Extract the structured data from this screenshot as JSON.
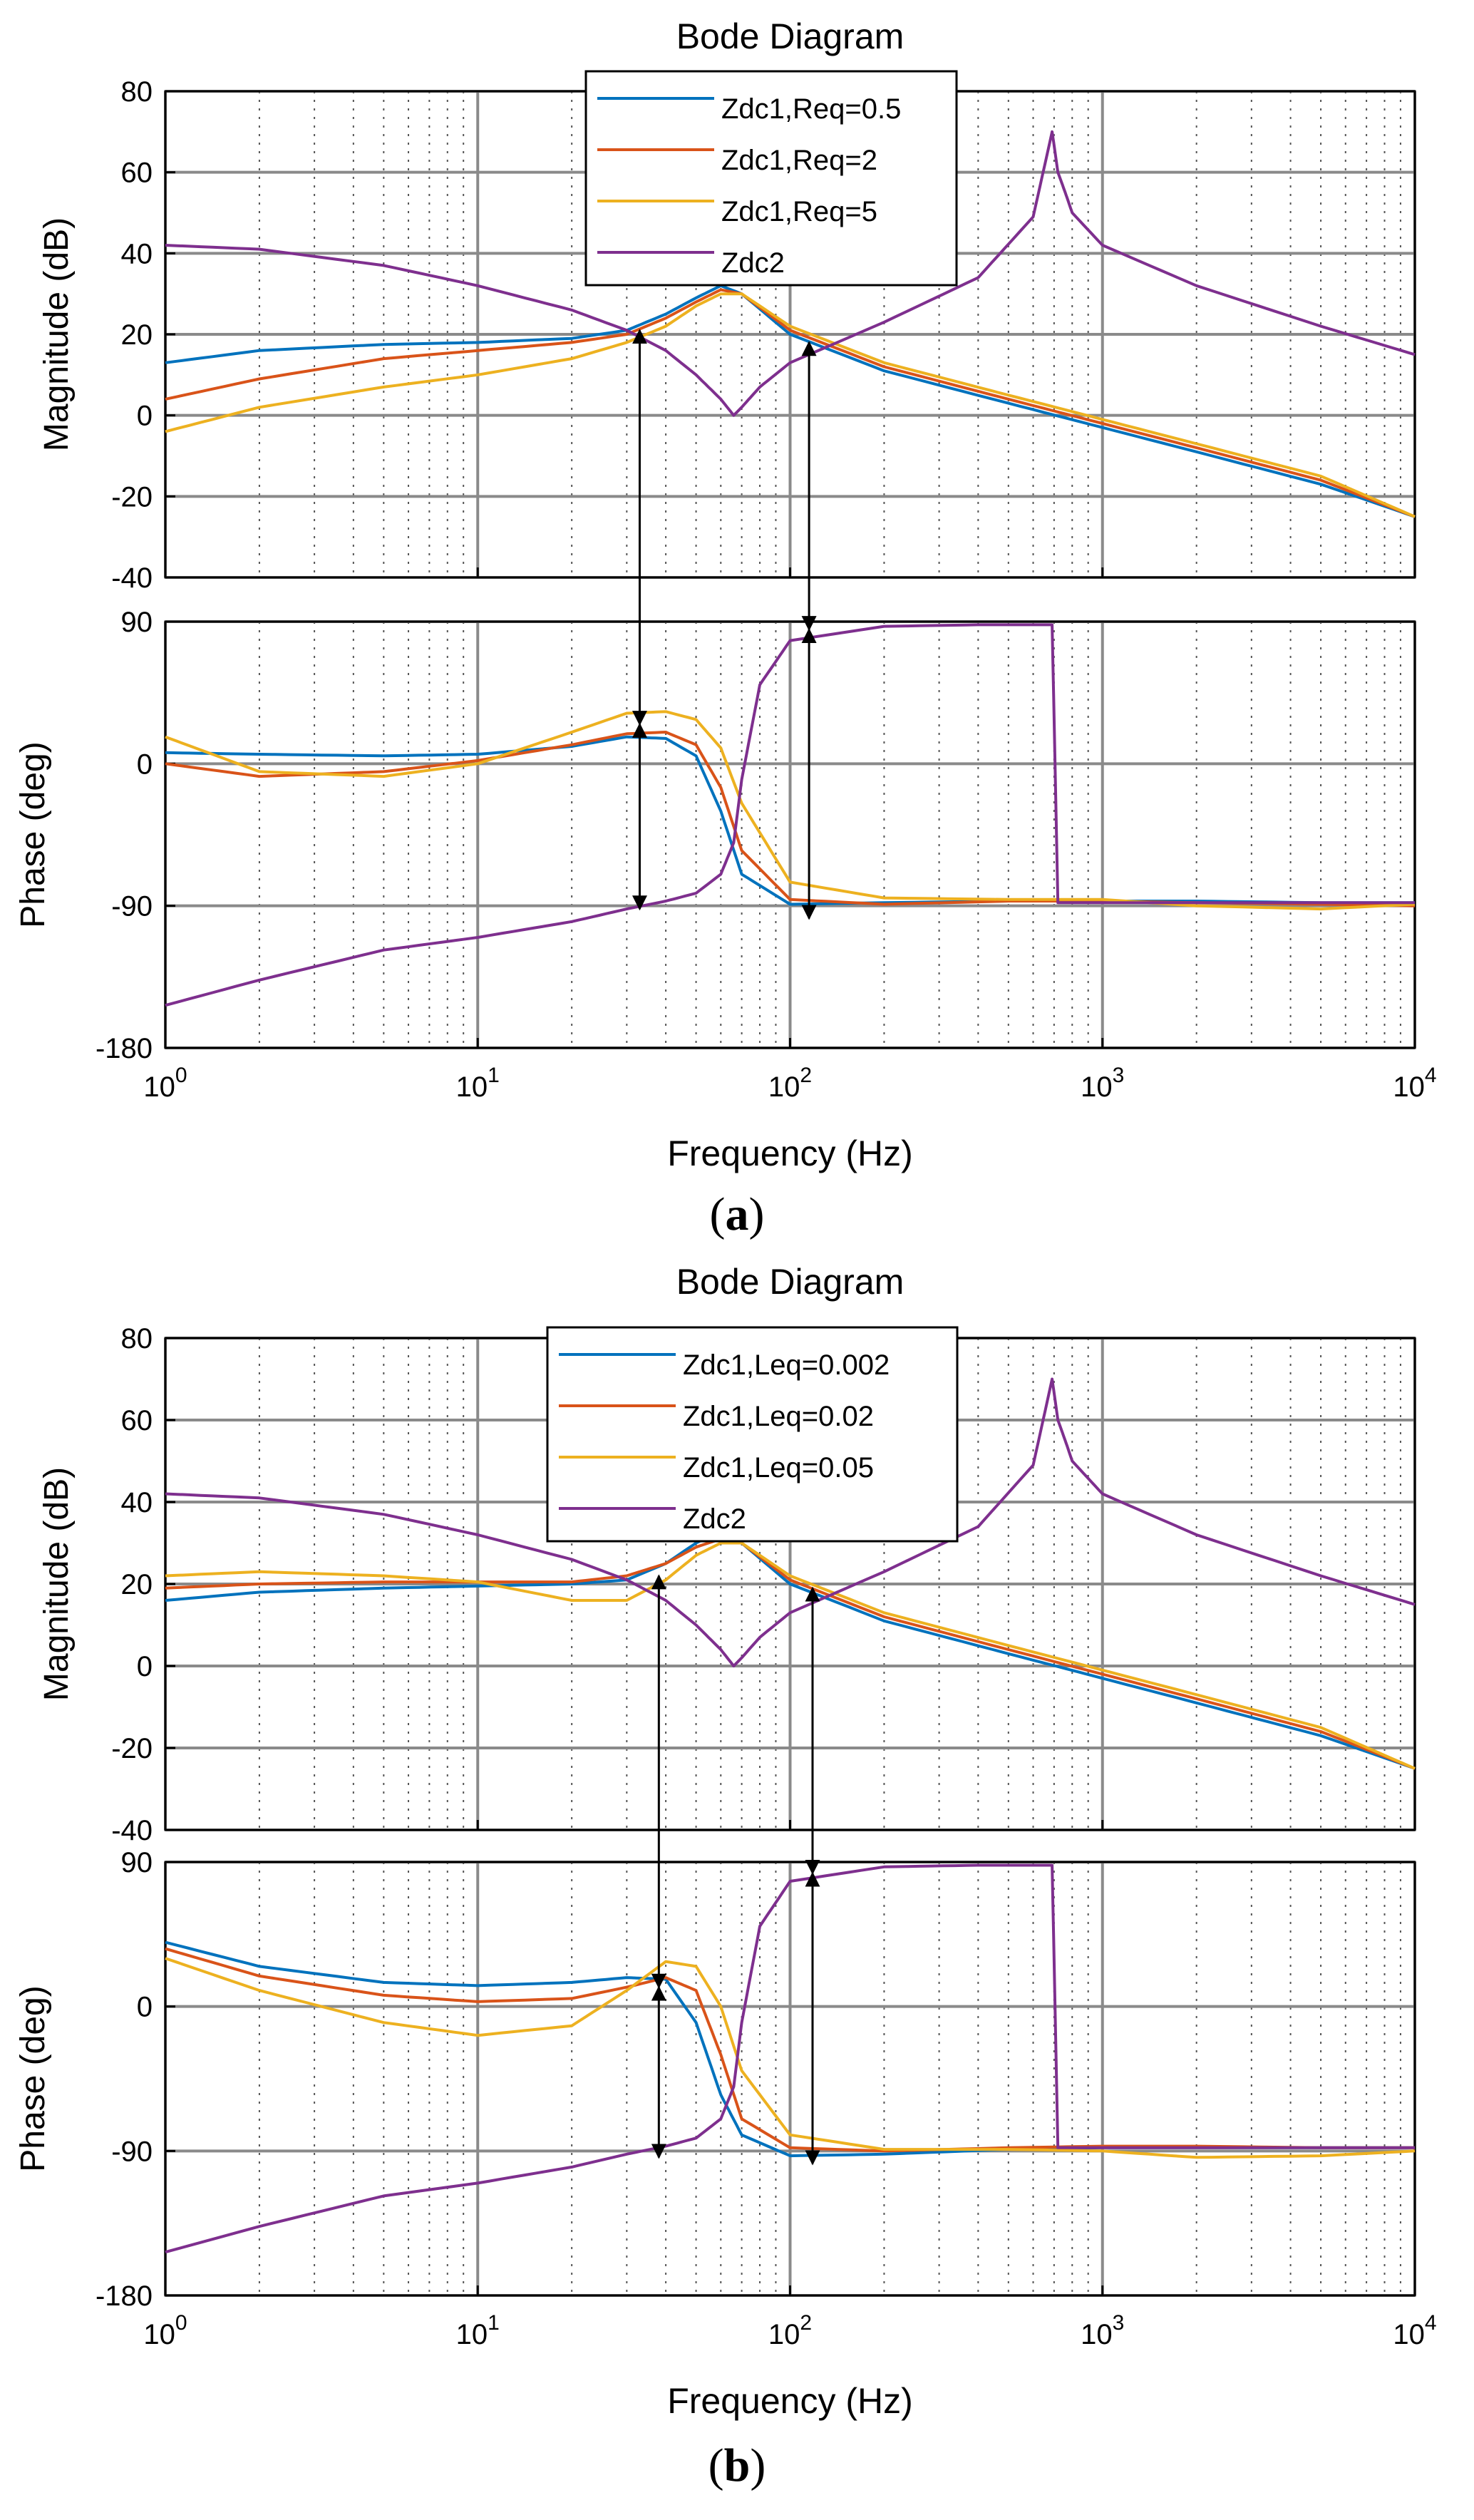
{
  "chart_data": [
    {
      "type": "line",
      "panel_label_open": "(",
      "panel_label_letter": "a",
      "panel_label_close": ")",
      "title": "Bode Diagram",
      "xlabel": "Frequency  (Hz)",
      "x_scale": "log",
      "xlim": [
        1,
        10000
      ],
      "x_tick_values": [
        1,
        10,
        100,
        1000,
        10000
      ],
      "x_tick_base": "10",
      "x_tick_exponents": [
        "0",
        "1",
        "2",
        "3",
        "4"
      ],
      "magnitude": {
        "ylabel": "Magnitude (dB)",
        "ylim": [
          -40,
          80
        ],
        "yticks": [
          -40,
          -20,
          0,
          20,
          40,
          60,
          80
        ],
        "ytick_labels": [
          "-40",
          "-20",
          "0",
          "20",
          "40",
          "60",
          "80"
        ]
      },
      "phase": {
        "ylabel": "Phase (deg)",
        "ylim": [
          -180,
          90
        ],
        "yticks": [
          -180,
          -90,
          0,
          90
        ],
        "ytick_labels": [
          "-180",
          "-90",
          "0",
          "90"
        ]
      },
      "legend_position": "top-center",
      "series": [
        {
          "name": "Zdc1,Req=0.5",
          "color": "#0072BD",
          "x": [
            1,
            2,
            5,
            10,
            20,
            30,
            40,
            50,
            60,
            70,
            100,
            200,
            500,
            1000,
            2000,
            5000,
            10000
          ],
          "magnitude_db": [
            13,
            16,
            17.5,
            18,
            19,
            21,
            25,
            29,
            32,
            30,
            20,
            11,
            3,
            -3,
            -9,
            -17,
            -25
          ],
          "phase_deg": [
            7,
            6,
            5,
            6,
            11,
            17,
            16,
            5,
            -30,
            -70,
            -89,
            -88,
            -87,
            -87,
            -87,
            -88,
            -88
          ]
        },
        {
          "name": "Zdc1,Req=2",
          "color": "#D95319",
          "x": [
            1,
            2,
            5,
            10,
            20,
            30,
            40,
            50,
            60,
            70,
            100,
            200,
            500,
            1000,
            2000,
            5000,
            10000
          ],
          "magnitude_db": [
            4,
            9,
            14,
            16,
            18,
            20,
            24,
            28,
            31,
            30,
            21,
            12,
            4,
            -2,
            -8,
            -16,
            -25
          ],
          "phase_deg": [
            0,
            -8,
            -5,
            2,
            12,
            19,
            20,
            12,
            -15,
            -55,
            -86,
            -89,
            -87,
            -87,
            -88,
            -89,
            -90
          ]
        },
        {
          "name": "Zdc1,Req=5",
          "color": "#EDB120",
          "x": [
            1,
            2,
            5,
            10,
            20,
            30,
            40,
            50,
            60,
            70,
            100,
            200,
            500,
            1000,
            2000,
            5000,
            10000
          ],
          "magnitude_db": [
            -4,
            2,
            7,
            10,
            14,
            18,
            22,
            27,
            30,
            30,
            22,
            13,
            5,
            -1,
            -7,
            -15,
            -25
          ],
          "phase_deg": [
            17,
            -5,
            -8,
            0,
            20,
            32,
            33,
            28,
            10,
            -25,
            -75,
            -85,
            -86,
            -86,
            -90,
            -92,
            -89
          ]
        },
        {
          "name": "Zdc2",
          "color": "#7E2F8E",
          "x": [
            1,
            2,
            5,
            10,
            20,
            30,
            40,
            50,
            60,
            66,
            70,
            80,
            100,
            200,
            400,
            600,
            690,
            720,
            760,
            800,
            1000,
            2000,
            5000,
            10000
          ],
          "magnitude_db": [
            42,
            41,
            37,
            32,
            26,
            21,
            16,
            10,
            4,
            0,
            2,
            7,
            13,
            23,
            34,
            49,
            70,
            60,
            55,
            50,
            42,
            32,
            22,
            15
          ],
          "phase_deg": [
            -153,
            -137,
            -118,
            -110,
            -100,
            -92,
            -87,
            -82,
            -70,
            -50,
            -10,
            50,
            78,
            87,
            88,
            88,
            88,
            -88,
            -88,
            -88,
            -88,
            -88,
            -88,
            -88
          ]
        }
      ],
      "annotations": [
        {
          "type": "double-arrow",
          "x": 33,
          "magnitude_db": 21,
          "phase_deg_top": 25,
          "phase_deg_bottom": -92
        },
        {
          "type": "double-arrow",
          "x": 115,
          "magnitude_db": 18,
          "phase_deg_top": 85,
          "phase_deg_bottom": -98
        }
      ]
    },
    {
      "type": "line",
      "panel_label_open": "(",
      "panel_label_letter": "b",
      "panel_label_close": ")",
      "title": "Bode Diagram",
      "xlabel": "Frequency  (Hz)",
      "x_scale": "log",
      "xlim": [
        1,
        10000
      ],
      "x_tick_values": [
        1,
        10,
        100,
        1000,
        10000
      ],
      "x_tick_base": "10",
      "x_tick_exponents": [
        "0",
        "1",
        "2",
        "3",
        "4"
      ],
      "magnitude": {
        "ylabel": "Magnitude (dB)",
        "ylim": [
          -40,
          80
        ],
        "yticks": [
          -40,
          -20,
          0,
          20,
          40,
          60,
          80
        ],
        "ytick_labels": [
          "-40",
          "-20",
          "0",
          "20",
          "40",
          "60",
          "80"
        ]
      },
      "phase": {
        "ylabel": "Phase (deg)",
        "ylim": [
          -180,
          90
        ],
        "yticks": [
          -180,
          -90,
          0,
          90
        ],
        "ytick_labels": [
          "-180",
          "-90",
          "0",
          "90"
        ]
      },
      "legend_position": "top-center",
      "series": [
        {
          "name": "Zdc1,Leq=0.002",
          "color": "#0072BD",
          "x": [
            1,
            2,
            5,
            10,
            20,
            30,
            40,
            50,
            60,
            70,
            100,
            200,
            500,
            1000,
            2000,
            5000,
            10000
          ],
          "magnitude_db": [
            16,
            18,
            19,
            19.5,
            20,
            21,
            25,
            30,
            33,
            30,
            20,
            11,
            3,
            -3,
            -9,
            -17,
            -25
          ],
          "phase_deg": [
            40,
            25,
            15,
            13,
            15,
            18,
            17,
            -10,
            -55,
            -80,
            -93,
            -92,
            -89,
            -88,
            -88,
            -88,
            -88
          ]
        },
        {
          "name": "Zdc1,Leq=0.02",
          "color": "#D95319",
          "x": [
            1,
            2,
            5,
            10,
            20,
            30,
            40,
            50,
            60,
            70,
            100,
            200,
            500,
            1000,
            2000,
            5000,
            10000
          ],
          "magnitude_db": [
            19,
            20,
            20.5,
            20.5,
            20.5,
            22,
            25,
            29,
            31,
            30,
            21,
            12,
            4,
            -2,
            -8,
            -16,
            -25
          ],
          "phase_deg": [
            36,
            19,
            7,
            3,
            5,
            12,
            18,
            10,
            -30,
            -70,
            -88,
            -90,
            -88,
            -87,
            -87,
            -88,
            -88
          ]
        },
        {
          "name": "Zdc1,Leq=0.05",
          "color": "#EDB120",
          "x": [
            1,
            2,
            5,
            10,
            20,
            30,
            40,
            50,
            60,
            70,
            100,
            200,
            500,
            1000,
            2000,
            5000,
            10000
          ],
          "magnitude_db": [
            22,
            23,
            22,
            20.5,
            16,
            16,
            21,
            27,
            30,
            30,
            22,
            13,
            5,
            -1,
            -7,
            -15,
            -25
          ],
          "phase_deg": [
            30,
            10,
            -10,
            -18,
            -12,
            10,
            28,
            25,
            0,
            -40,
            -80,
            -89,
            -89,
            -90,
            -94,
            -93,
            -90
          ]
        },
        {
          "name": "Zdc2",
          "color": "#7E2F8E",
          "x": [
            1,
            2,
            5,
            10,
            20,
            30,
            40,
            50,
            60,
            66,
            70,
            80,
            100,
            200,
            400,
            600,
            690,
            720,
            760,
            800,
            1000,
            2000,
            5000,
            10000
          ],
          "magnitude_db": [
            42,
            41,
            37,
            32,
            26,
            21,
            16,
            10,
            4,
            0,
            2,
            7,
            13,
            23,
            34,
            49,
            70,
            60,
            55,
            50,
            42,
            32,
            22,
            15
          ],
          "phase_deg": [
            -153,
            -137,
            -118,
            -110,
            -100,
            -92,
            -87,
            -82,
            -70,
            -50,
            -10,
            50,
            78,
            87,
            88,
            88,
            88,
            -88,
            -88,
            -88,
            -88,
            -88,
            -88,
            -88
          ]
        }
      ],
      "annotations": [
        {
          "type": "double-arrow",
          "x": 38,
          "magnitude_db": 22,
          "phase_deg_top": 12,
          "phase_deg_bottom": -94
        },
        {
          "type": "double-arrow",
          "x": 118,
          "magnitude_db": 19,
          "phase_deg_top": 83,
          "phase_deg_bottom": -98
        }
      ]
    }
  ]
}
